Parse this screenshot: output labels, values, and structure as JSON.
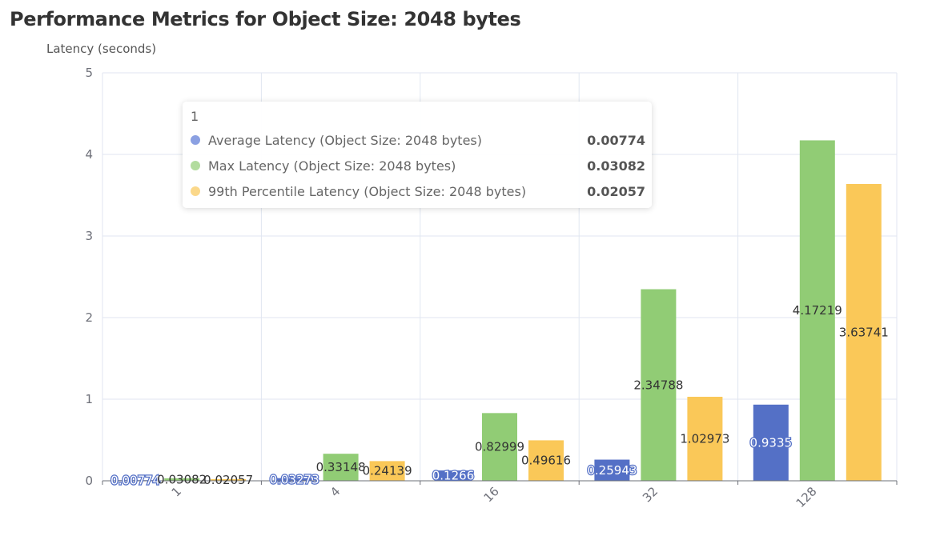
{
  "chart_data": {
    "type": "bar",
    "title": "Performance Metrics for Object Size: 2048 bytes",
    "xlabel": "",
    "ylabel": "Latency (seconds)",
    "ylim": [
      0,
      5
    ],
    "yticks": [
      "0",
      "1",
      "2",
      "3",
      "4",
      "5"
    ],
    "categories": [
      "1",
      "4",
      "16",
      "32",
      "128"
    ],
    "grid": true,
    "series": [
      {
        "name": "Average Latency (Object Size: 2048 bytes)",
        "color": "#5470c6",
        "values": [
          0.00774,
          0.03273,
          0.1266,
          0.25943,
          0.9335
        ],
        "labels": [
          "0.00774",
          "0.03273",
          "0.1266",
          "0.25943",
          "0.9335"
        ]
      },
      {
        "name": "Max Latency (Object Size: 2048 bytes)",
        "color": "#91cc75",
        "values": [
          0.03082,
          0.33148,
          0.82999,
          2.34788,
          4.17219
        ],
        "labels": [
          "0.03082",
          "0.33148",
          "0.82999",
          "2.34788",
          "4.17219"
        ]
      },
      {
        "name": "99th Percentile Latency (Object Size: 2048 bytes)",
        "color": "#fac858",
        "values": [
          0.02057,
          0.24139,
          0.49616,
          1.02973,
          3.63741
        ],
        "labels": [
          "0.02057",
          "0.24139",
          "0.49616",
          "1.02973",
          "3.63741"
        ]
      }
    ]
  },
  "tooltip": {
    "title": "1",
    "rows": [
      {
        "name": "Average Latency (Object Size: 2048 bytes)",
        "value": "0.00774",
        "color": "#5470c6"
      },
      {
        "name": "Max Latency (Object Size: 2048 bytes)",
        "value": "0.03082",
        "color": "#91cc75"
      },
      {
        "name": "99th Percentile Latency (Object Size: 2048 bytes)",
        "value": "0.02057",
        "color": "#fac858"
      }
    ]
  }
}
